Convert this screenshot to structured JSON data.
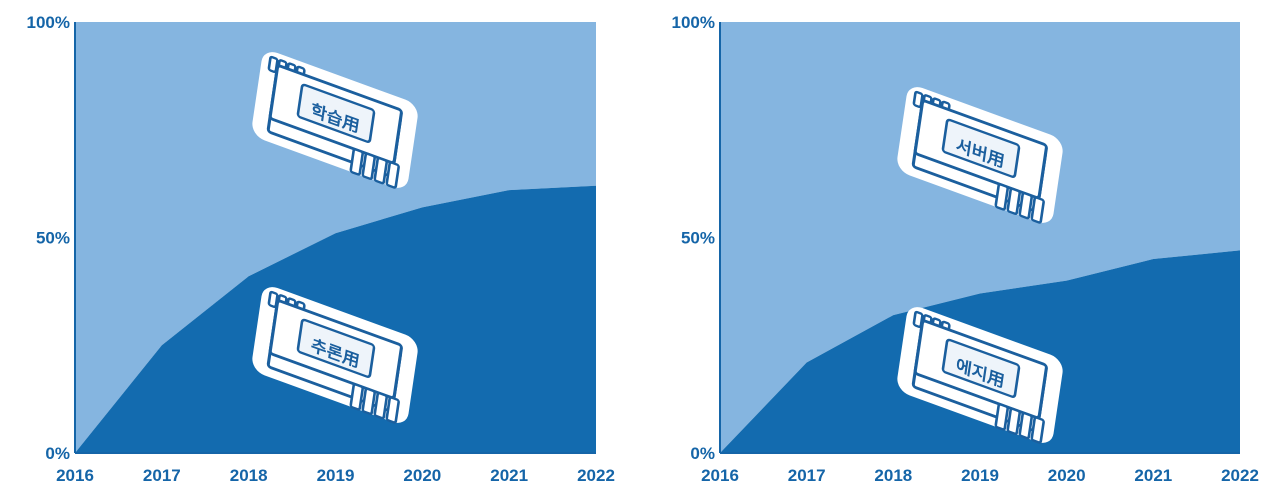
{
  "chart_data": [
    {
      "type": "area",
      "stacked": true,
      "x": [
        "2016",
        "2017",
        "2018",
        "2019",
        "2020",
        "2021",
        "2022"
      ],
      "ylim": [
        0,
        100
      ],
      "yticks": [
        "0%",
        "50%",
        "100%"
      ],
      "grid": false,
      "legend": "none",
      "series": [
        {
          "name": "추론用",
          "values": [
            0,
            25,
            41,
            51,
            57,
            61,
            62
          ],
          "color": "#136baf"
        },
        {
          "name": "학습用",
          "values": [
            100,
            75,
            59,
            49,
            43,
            39,
            38
          ],
          "color": "#85b5e0"
        }
      ],
      "icons": {
        "lower": "chip-icon",
        "upper": "chip-icon"
      }
    },
    {
      "type": "area",
      "stacked": true,
      "x": [
        "2016",
        "2017",
        "2018",
        "2019",
        "2020",
        "2021",
        "2022"
      ],
      "ylim": [
        0,
        100
      ],
      "yticks": [
        "0%",
        "50%",
        "100%"
      ],
      "grid": false,
      "legend": "none",
      "series": [
        {
          "name": "에지用",
          "values": [
            0,
            21,
            32,
            37,
            40,
            45,
            47
          ],
          "color": "#136baf"
        },
        {
          "name": "서버用",
          "values": [
            100,
            79,
            68,
            63,
            60,
            55,
            53
          ],
          "color": "#85b5e0"
        }
      ],
      "icons": {
        "lower": "chip-icon",
        "upper": "chip-icon"
      }
    }
  ]
}
